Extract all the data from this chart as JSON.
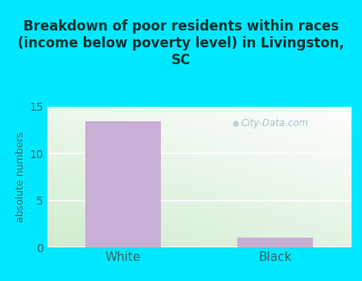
{
  "categories": [
    "White",
    "Black"
  ],
  "values": [
    13.5,
    1.0
  ],
  "bar_color": "#c9aed6",
  "title": "Breakdown of poor residents within races\n(income below poverty level) in Livingston,\nSC",
  "ylabel": "absolute numbers",
  "ylim": [
    0,
    15
  ],
  "yticks": [
    0,
    5,
    10,
    15
  ],
  "background_outer": "#00e8ff",
  "background_plot_topleft": "#e8f5e8",
  "background_plot_topright": "#ffffff",
  "background_plot_bottomleft": "#d0ecd0",
  "background_plot_bottomright": "#eaf4ea",
  "title_fontsize": 12,
  "tick_fontsize": 10,
  "ylabel_fontsize": 9,
  "watermark_text": "City-Data.com",
  "title_color": "#003333",
  "tick_color": "#336666"
}
